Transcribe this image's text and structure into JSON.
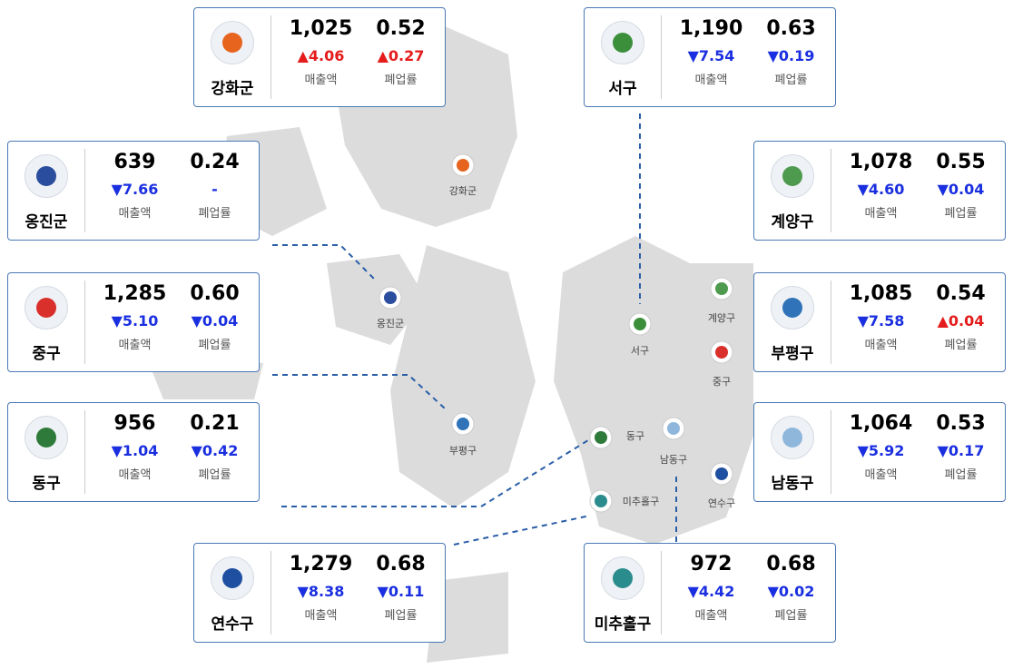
{
  "labels": {
    "sales": "매출액",
    "rate": "폐업률"
  },
  "districts": [
    {
      "name": "강화군",
      "sales": "1,025",
      "rate": "0.52",
      "sales_change": "▲4.06",
      "rate_change": "▲0.27"
    },
    {
      "name": "서구",
      "sales": "1,190",
      "rate": "0.63",
      "sales_change": "▼7.54",
      "rate_change": "▼0.19"
    },
    {
      "name": "옹진군",
      "sales": "639",
      "rate": "0.24",
      "sales_change": "▼7.66",
      "rate_change": "-"
    },
    {
      "name": "계양구",
      "sales": "1,078",
      "rate": "0.55",
      "sales_change": "▼4.60",
      "rate_change": "▼0.04"
    },
    {
      "name": "중구",
      "sales": "1,285",
      "rate": "0.60",
      "sales_change": "▼5.10",
      "rate_change": "▼0.04"
    },
    {
      "name": "부평구",
      "sales": "1,085",
      "rate": "0.54",
      "sales_change": "▼7.58",
      "rate_change": "▲0.04"
    },
    {
      "name": "동구",
      "sales": "956",
      "rate": "0.21",
      "sales_change": "▼1.04",
      "rate_change": "▼0.42"
    },
    {
      "name": "남동구",
      "sales": "1,064",
      "rate": "0.53",
      "sales_change": "▼5.92",
      "rate_change": "▼0.17"
    },
    {
      "name": "연수구",
      "sales": "1,279",
      "rate": "0.68",
      "sales_change": "▼8.38",
      "rate_change": "▼0.11"
    },
    {
      "name": "미추홀구",
      "sales": "972",
      "rate": "0.68",
      "sales_change": "▼4.42",
      "rate_change": "▼0.02"
    }
  ]
}
